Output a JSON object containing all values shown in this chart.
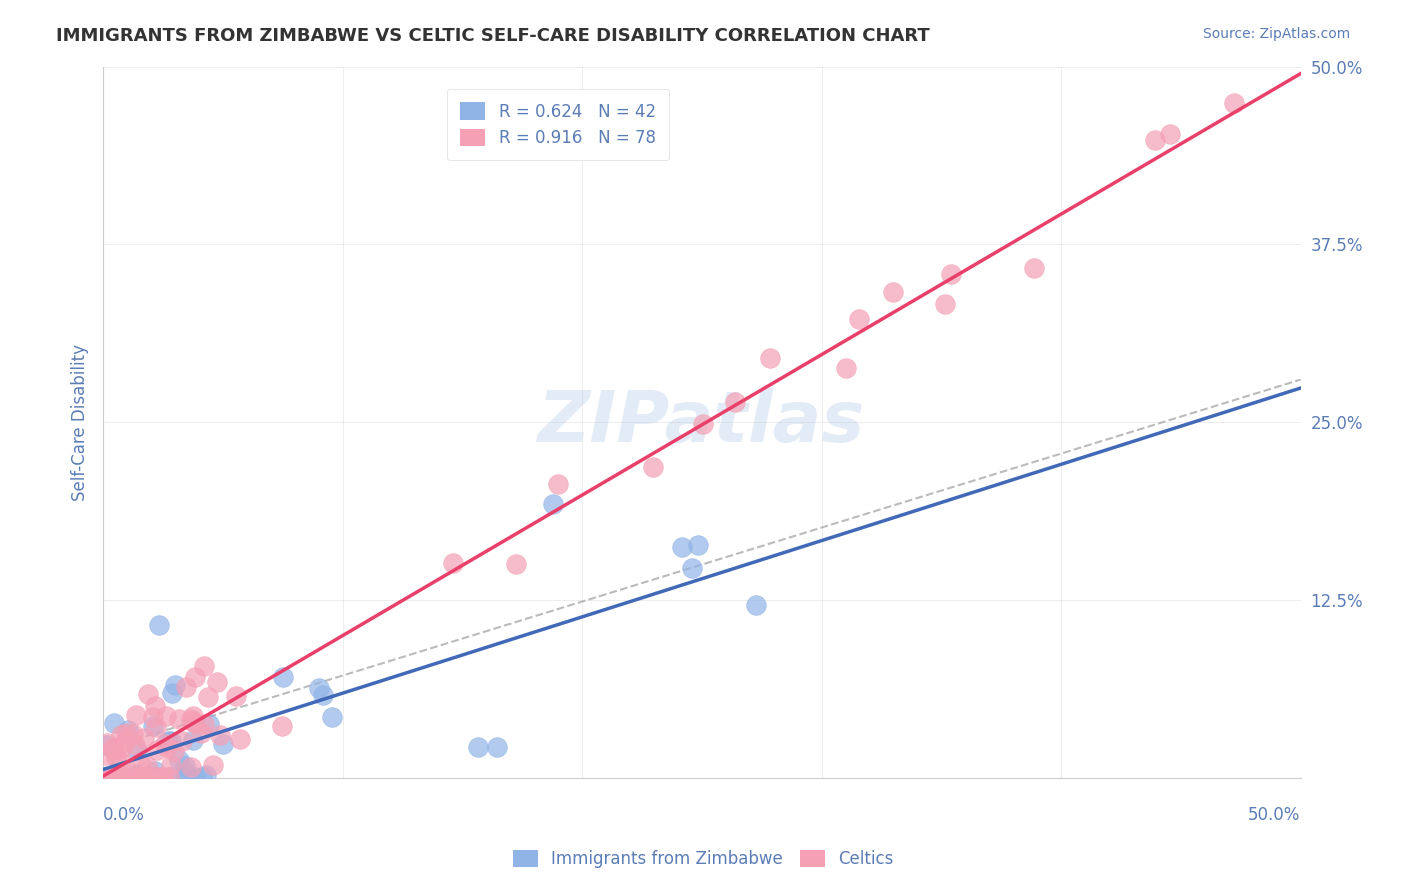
{
  "title": "IMMIGRANTS FROM ZIMBABWE VS CELTIC SELF-CARE DISABILITY CORRELATION CHART",
  "source": "Source: ZipAtlas.com",
  "ylabel": "Self-Care Disability",
  "ytick_values": [
    0,
    0.125,
    0.25,
    0.375,
    0.5
  ],
  "xmin": 0.0,
  "xmax": 0.5,
  "ymin": 0.0,
  "ymax": 0.5,
  "legend1_r": "0.624",
  "legend1_n": "42",
  "legend2_r": "0.916",
  "legend2_n": "78",
  "blue_color": "#91b4e7",
  "pink_color": "#f5a0b5",
  "blue_line_color": "#4169b8",
  "pink_line_color": "#e8406a",
  "dashed_line_color": "#aaaaaa",
  "text_color": "#5b7db5",
  "background_color": "#ffffff",
  "watermark": "ZIPatlas"
}
